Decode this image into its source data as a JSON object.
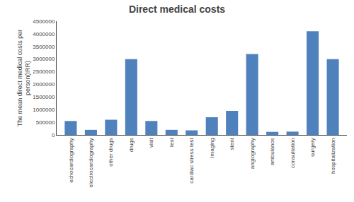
{
  "chart_data": {
    "type": "bar",
    "title": "Direct medical costs",
    "ylabel": "The mean direct medical costs per\nperson(IRR)",
    "categories": [
      "echocardiography",
      "electrocardiography",
      "other drugs",
      "drugs",
      "visit",
      "test",
      "cardiac stress test",
      "imaging",
      "stent",
      "angiography",
      "ambulance",
      "consultation",
      "surgery",
      "hospitalization"
    ],
    "values": [
      550000,
      200000,
      600000,
      3000000,
      550000,
      200000,
      180000,
      700000,
      950000,
      3200000,
      120000,
      130000,
      4100000,
      3000000
    ],
    "color": "#4F81BD",
    "ylim": [
      0,
      4500000
    ],
    "yticks": [
      0,
      500000,
      1000000,
      1500000,
      2000000,
      2500000,
      3000000,
      3500000,
      4000000,
      4500000
    ],
    "grid": false
  }
}
